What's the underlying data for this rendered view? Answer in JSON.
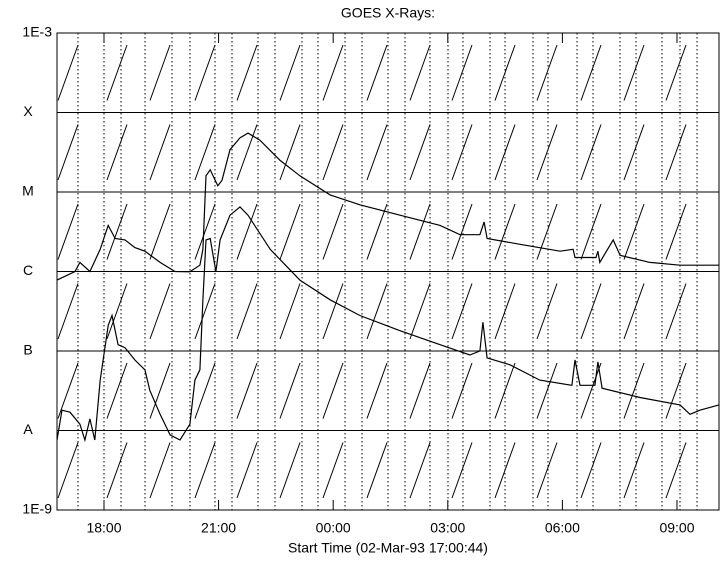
{
  "chart_data": {
    "type": "line",
    "title": "GOES X-Rays:",
    "x_label": "Start Time (02-Mar-93 17:00:44)",
    "log_y": true,
    "grid": true,
    "xlim": [
      16.77,
      34.1
    ],
    "ylim": [
      1e-09,
      0.001
    ],
    "xticks": [
      {
        "value": 18,
        "label": "18:00"
      },
      {
        "value": 21,
        "label": "21:00"
      },
      {
        "value": 24,
        "label": "00:00"
      },
      {
        "value": 27,
        "label": "03:00"
      },
      {
        "value": 30,
        "label": "06:00"
      },
      {
        "value": 33,
        "label": "09:00"
      }
    ],
    "yticks": [
      {
        "value": 1e-09,
        "label": "1E-9"
      },
      {
        "value": 1e-08,
        "label": "A"
      },
      {
        "value": 1e-07,
        "label": "B"
      },
      {
        "value": 1e-06,
        "label": "C"
      },
      {
        "value": 1e-05,
        "label": "M"
      },
      {
        "value": 0.0001,
        "label": "X"
      },
      {
        "value": 0.001,
        "label": "1E-3"
      }
    ],
    "series": [
      {
        "color": "#000000",
        "x": [
          16.77,
          17.24,
          17.37,
          17.63,
          17.9,
          18.11,
          18.29,
          18.55,
          18.81,
          19.07,
          19.47,
          19.86,
          20.25,
          20.51,
          20.59,
          20.67,
          20.78,
          20.98,
          21.09,
          21.3,
          21.56,
          21.77,
          22.08,
          22.61,
          23.13,
          23.92,
          24.7,
          25.75,
          26.8,
          27.32,
          27.84,
          27.95,
          28.03,
          28.89,
          29.94,
          30.28,
          30.33,
          30.88,
          30.93,
          30.98,
          31.33,
          31.51,
          32.29,
          33.08,
          34.1
        ],
        "values": [
          7.8e-07,
          1e-06,
          1.3e-06,
          1e-06,
          1.9e-06,
          3.8e-06,
          2.6e-06,
          2.5e-06,
          2e-06,
          1.8e-06,
          1.3e-06,
          1e-06,
          9.9e-07,
          1.2e-06,
          1.9e-06,
          1.6e-05,
          1.9e-05,
          1.2e-05,
          1.4e-05,
          3.4e-05,
          4.8e-05,
          5.5e-05,
          4.5e-05,
          2.5e-05,
          1.6e-05,
          9.2e-06,
          6.9e-06,
          5.1e-06,
          3.8e-06,
          2.9e-06,
          2.9e-06,
          4.2e-06,
          2.6e-06,
          2.2e-06,
          1.8e-06,
          1.9e-06,
          1.5e-06,
          1.5e-06,
          1.8e-06,
          1.3e-06,
          2.5e-06,
          1.6e-06,
          1.3e-06,
          1.2e-06,
          1.2e-06
        ]
      },
      {
        "color": "#000000",
        "x": [
          16.77,
          16.9,
          17.11,
          17.37,
          17.5,
          17.63,
          17.76,
          17.9,
          18.11,
          18.21,
          18.37,
          18.55,
          18.81,
          19.07,
          19.2,
          19.47,
          19.73,
          19.99,
          20.25,
          20.38,
          20.51,
          20.59,
          20.67,
          20.78,
          20.93,
          21.04,
          21.3,
          21.56,
          21.77,
          22.35,
          23.13,
          23.92,
          24.7,
          25.75,
          26.8,
          27.58,
          27.84,
          27.92,
          28.03,
          28.63,
          29.41,
          30.25,
          30.33,
          30.46,
          30.85,
          30.93,
          31.04,
          32.03,
          33.08,
          33.34,
          33.6,
          34.1
        ],
        "values": [
          7.6e-09,
          1.8e-08,
          1.7e-08,
          1.2e-08,
          7.6e-09,
          1.4e-08,
          7.6e-09,
          4.3e-08,
          2.1e-07,
          2.8e-07,
          1.2e-07,
          1.1e-07,
          7.7e-08,
          5.8e-08,
          3.2e-08,
          1.6e-08,
          8.8e-09,
          7.6e-09,
          1.2e-08,
          4.3e-08,
          5.8e-08,
          4.4e-07,
          2.5e-06,
          2.6e-06,
          1e-06,
          2.5e-06,
          5.1e-06,
          6.5e-06,
          5.1e-06,
          1.9e-06,
          7.8e-07,
          4.4e-07,
          2.8e-07,
          1.8e-07,
          1.2e-07,
          8.9e-08,
          1e-07,
          2.3e-07,
          8.2e-08,
          6.7e-08,
          4.3e-08,
          3.7e-08,
          7.7e-08,
          3.7e-08,
          3.7e-08,
          7.3e-08,
          3.4e-08,
          2.6e-08,
          2.1e-08,
          1.6e-08,
          1.8e-08,
          2.1e-08
        ]
      }
    ]
  }
}
